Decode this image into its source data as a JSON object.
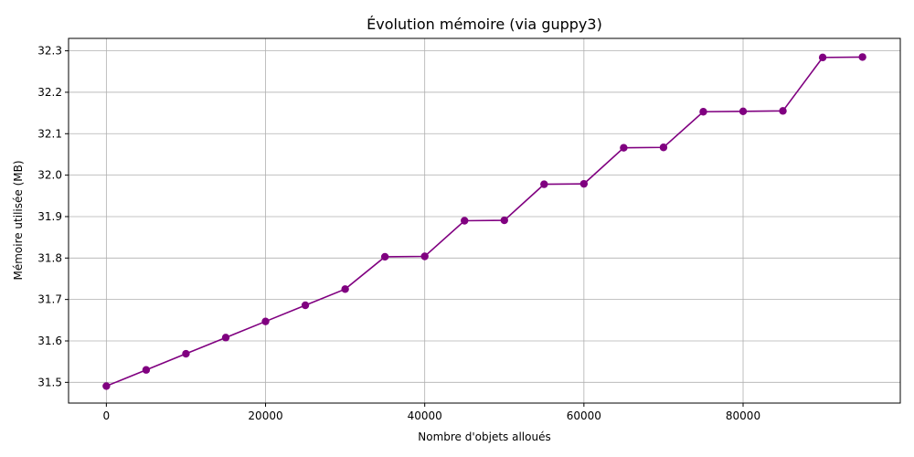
{
  "chart_data": {
    "type": "line",
    "title": "Évolution mémoire (via guppy3)",
    "xlabel": "Nombre d'objets alloués",
    "ylabel": "Mémoire utilisée (MB)",
    "xlim": [
      -4750,
      99750
    ],
    "ylim": [
      31.45,
      32.33
    ],
    "xticks": [
      0,
      20000,
      40000,
      60000,
      80000
    ],
    "xtick_labels": [
      "0",
      "20000",
      "40000",
      "60000",
      "80000"
    ],
    "yticks": [
      31.5,
      31.6,
      31.7,
      31.8,
      31.9,
      32.0,
      32.1,
      32.2,
      32.3
    ],
    "ytick_labels": [
      "31.5",
      "31.6",
      "31.7",
      "31.8",
      "31.9",
      "32.0",
      "32.1",
      "32.2",
      "32.3"
    ],
    "grid": true,
    "color": "#800080",
    "marker": "circle",
    "x": [
      0,
      5000,
      10000,
      15000,
      20000,
      25000,
      30000,
      35000,
      40000,
      45000,
      50000,
      55000,
      60000,
      65000,
      70000,
      75000,
      80000,
      85000,
      90000,
      95000
    ],
    "y": [
      31.491,
      31.53,
      31.569,
      31.608,
      31.647,
      31.686,
      31.725,
      31.803,
      31.804,
      31.89,
      31.891,
      31.978,
      31.979,
      32.066,
      32.067,
      32.153,
      32.154,
      32.155,
      32.284,
      32.285
    ]
  }
}
